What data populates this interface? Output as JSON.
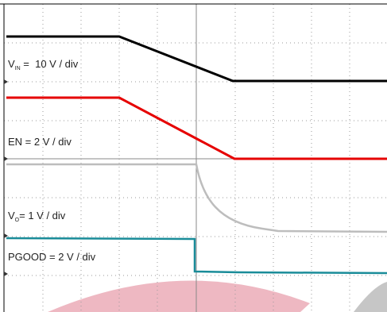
{
  "labels": [
    {
      "symbol": "V",
      "subscript": "IN",
      "text": " =  10 V / div"
    },
    {
      "text": "EN = 2 V / div"
    },
    {
      "symbol": "V",
      "subscript": "O",
      "text": "= 1 V / div"
    },
    {
      "text": "PGOOD = 2 V / div"
    }
  ]
}
